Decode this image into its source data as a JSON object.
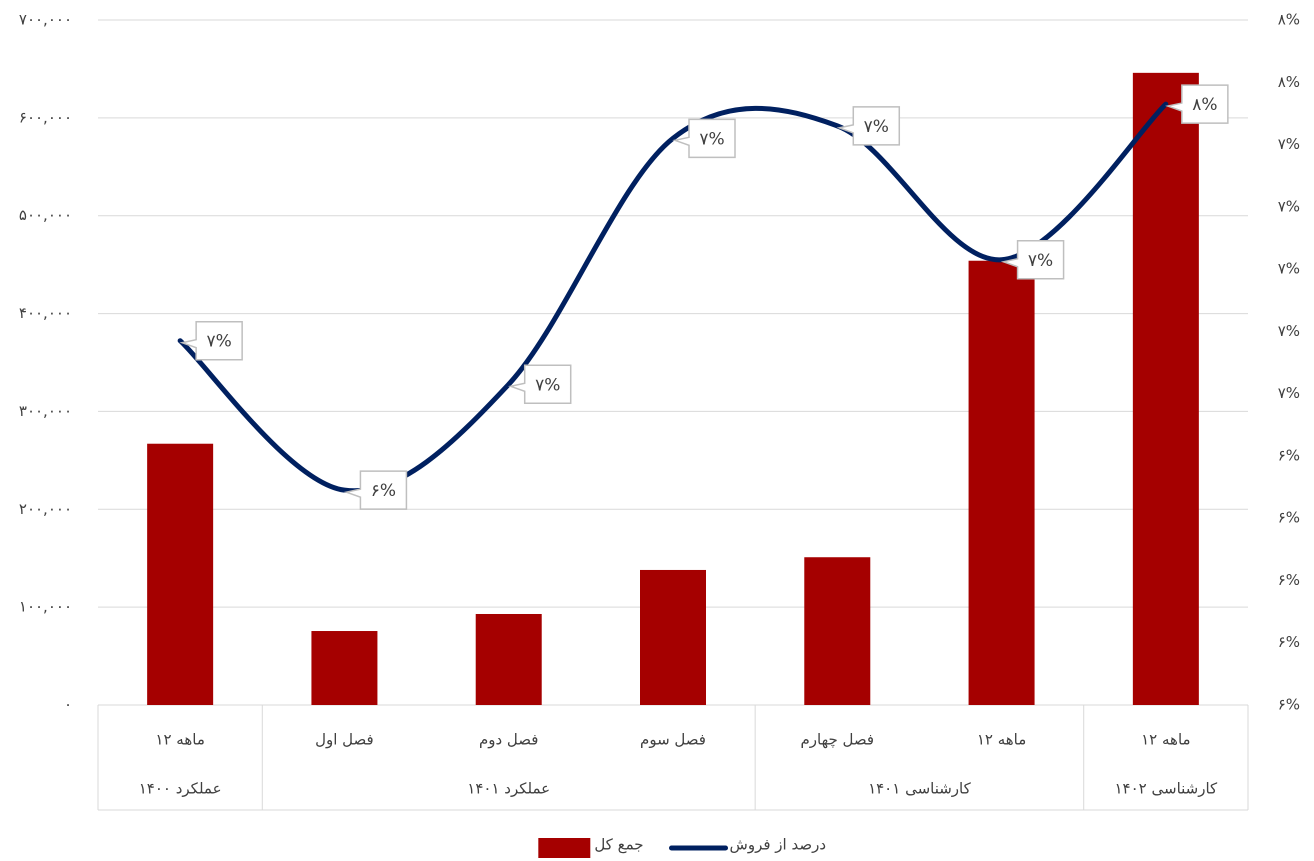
{
  "chart_data": {
    "type": "bar-line",
    "categories": [
      "۱۲ ماهه",
      "فصل اول",
      "فصل دوم",
      "فصل سوم",
      "فصل چهارم",
      "۱۲ ماهه",
      "۱۲ ماهه"
    ],
    "groups": [
      {
        "name": "عملکرد ۱۴۰۰",
        "count": 1
      },
      {
        "name": "عملکرد ۱۴۰۱",
        "count": 3
      },
      {
        "name": "کارشناسی ۱۴۰۱",
        "count": 2
      },
      {
        "name": "کارشناسی ۱۴۰۲",
        "count": 1
      }
    ],
    "series": [
      {
        "name": "جمع کل",
        "type": "bar",
        "color": "#a50000",
        "values": [
          267000,
          75600,
          93000,
          138000,
          151000,
          454000,
          646000
        ]
      },
      {
        "name": "درصد از فروش",
        "type": "line",
        "axis": "y2",
        "color": "#002060",
        "values": [
          6.77,
          6.29,
          6.63,
          7.42,
          7.46,
          7.03,
          7.53
        ],
        "value_labels": [
          "۷%",
          "۶%",
          "۷%",
          "۷%",
          "۷%",
          "۷%",
          "۸%"
        ]
      }
    ],
    "ylim": [
      0,
      700000
    ],
    "yticks": [
      {
        "value": 0,
        "label": "۰"
      },
      {
        "value": 100000,
        "label": "۱۰۰,۰۰۰"
      },
      {
        "value": 200000,
        "label": "۲۰۰,۰۰۰"
      },
      {
        "value": 300000,
        "label": "۳۰۰,۰۰۰"
      },
      {
        "value": 400000,
        "label": "۴۰۰,۰۰۰"
      },
      {
        "value": 500000,
        "label": "۵۰۰,۰۰۰"
      },
      {
        "value": 600000,
        "label": "۶۰۰,۰۰۰"
      },
      {
        "value": 700000,
        "label": "۷۰۰,۰۰۰"
      }
    ],
    "y2lim": [
      5.6,
      7.8
    ],
    "y2ticks": [
      {
        "value": 5.6,
        "label": "۶%"
      },
      {
        "value": 5.8,
        "label": "۶%"
      },
      {
        "value": 6.0,
        "label": "۶%"
      },
      {
        "value": 6.2,
        "label": "۶%"
      },
      {
        "value": 6.4,
        "label": "۶%"
      },
      {
        "value": 6.6,
        "label": "۷%"
      },
      {
        "value": 6.8,
        "label": "۷%"
      },
      {
        "value": 7.0,
        "label": "۷%"
      },
      {
        "value": 7.2,
        "label": "۷%"
      },
      {
        "value": 7.4,
        "label": "۷%"
      },
      {
        "value": 7.6,
        "label": "۸%"
      },
      {
        "value": 7.8,
        "label": "۸%"
      }
    ],
    "grid": true,
    "legend": "bottom"
  }
}
